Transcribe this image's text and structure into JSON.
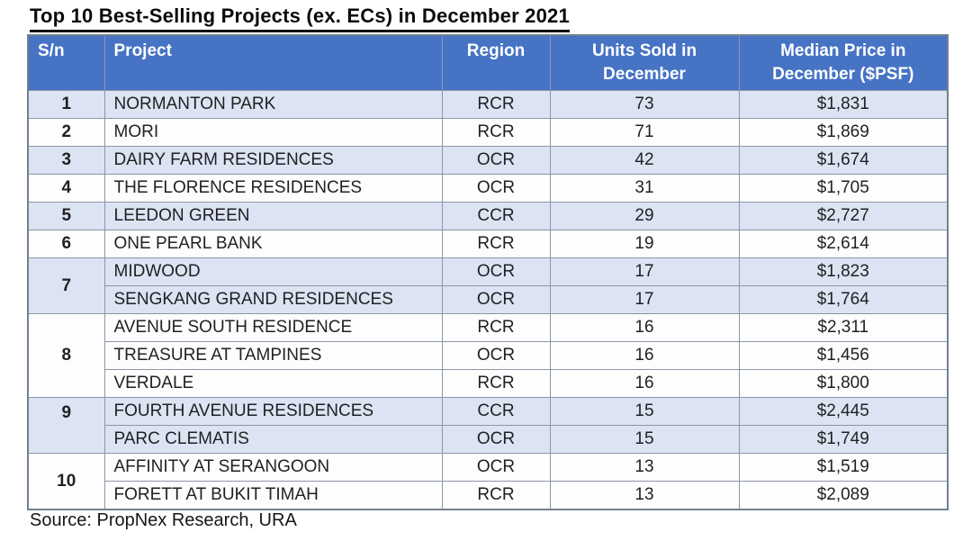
{
  "title": "Top 10 Best-Selling Projects (ex. ECs) in December 2021",
  "source": "Source: PropNex Research, URA",
  "colors": {
    "header_bg": "#4673c4",
    "header_text": "#ffffff",
    "band_blue": "#dce3f2",
    "band_white": "#fdfdfe",
    "border": "#8d97a6",
    "outer_border": "#73808f",
    "title_text": "#0b0b0b"
  },
  "chart_data": {
    "type": "table",
    "title": "Top 10 Best-Selling Projects (ex. ECs) in December 2021",
    "columns": [
      "S/n",
      "Project",
      "Region",
      "Units Sold in December",
      "Median Price in December ($PSF)"
    ],
    "groups": [
      {
        "sn": "1",
        "rows": [
          [
            "NORMANTON PARK",
            "RCR",
            "73",
            "$1,831"
          ]
        ]
      },
      {
        "sn": "2",
        "rows": [
          [
            "MORI",
            "RCR",
            "71",
            "$1,869"
          ]
        ]
      },
      {
        "sn": "3",
        "rows": [
          [
            "DAIRY FARM RESIDENCES",
            "OCR",
            "42",
            "$1,674"
          ]
        ]
      },
      {
        "sn": "4",
        "rows": [
          [
            "THE FLORENCE RESIDENCES",
            "OCR",
            "31",
            "$1,705"
          ]
        ]
      },
      {
        "sn": "5",
        "rows": [
          [
            "LEEDON GREEN",
            "CCR",
            "29",
            "$2,727"
          ]
        ]
      },
      {
        "sn": "6",
        "rows": [
          [
            "ONE PEARL BANK",
            "RCR",
            "19",
            "$2,614"
          ]
        ]
      },
      {
        "sn": "7",
        "rows": [
          [
            "MIDWOOD",
            "OCR",
            "17",
            "$1,823"
          ],
          [
            "SENGKANG GRAND RESIDENCES",
            "OCR",
            "17",
            "$1,764"
          ]
        ]
      },
      {
        "sn": "8",
        "rows": [
          [
            "AVENUE SOUTH RESIDENCE",
            "RCR",
            "16",
            "$2,311"
          ],
          [
            "TREASURE AT TAMPINES",
            "OCR",
            "16",
            "$1,456"
          ],
          [
            "VERDALE",
            "RCR",
            "16",
            "$1,800"
          ]
        ]
      },
      {
        "sn": "9",
        "sn_align": "top",
        "rows": [
          [
            "FOURTH AVENUE RESIDENCES",
            "CCR",
            "15",
            "$2,445"
          ],
          [
            "PARC CLEMATIS",
            "OCR",
            "15",
            "$1,749"
          ]
        ]
      },
      {
        "sn": "10",
        "rows": [
          [
            "AFFINITY AT SERANGOON",
            "OCR",
            "13",
            "$1,519"
          ],
          [
            "FORETT AT BUKIT TIMAH",
            "RCR",
            "13",
            "$2,089"
          ]
        ]
      }
    ]
  }
}
